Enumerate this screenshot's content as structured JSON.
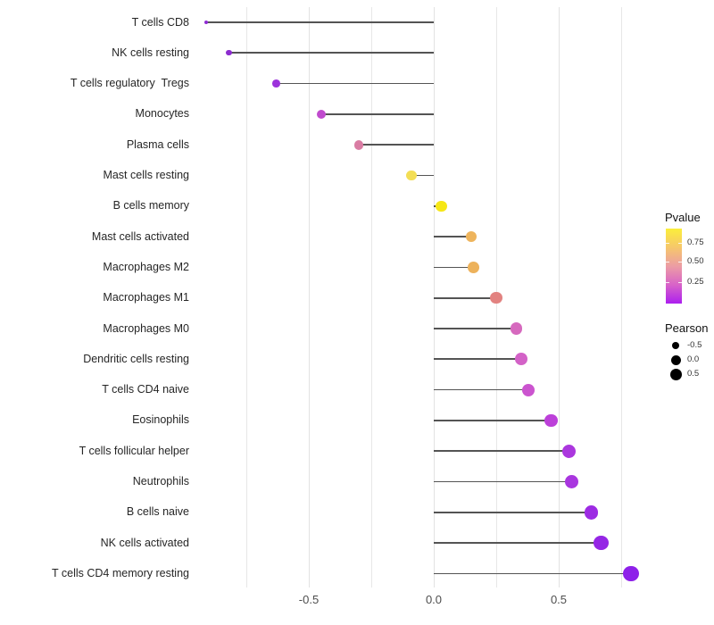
{
  "chart_data": {
    "type": "lollipop",
    "title": "",
    "xlabel": "",
    "ylabel": "",
    "x_axis": {
      "tick_labels": [
        "-0.5",
        "0.0",
        "0.5"
      ],
      "tick_values": [
        -0.5,
        0.0,
        0.5
      ],
      "gridline_values": [
        -0.75,
        -0.5,
        -0.25,
        0.0,
        0.25,
        0.5,
        0.75
      ],
      "range": [
        -0.98,
        0.85
      ],
      "grid": "vertical-only"
    },
    "stem_color": "#545454",
    "points": [
      {
        "label": "T cells CD8",
        "pearson": -0.91,
        "color": "#8F2BD3",
        "radius": 2.0
      },
      {
        "label": "NK cells resting",
        "pearson": -0.82,
        "color": "#8C2CCF",
        "radius": 3.2
      },
      {
        "label": "T cells regulatory  Tregs",
        "pearson": -0.63,
        "color": "#9C33DB",
        "radius": 4.3
      },
      {
        "label": "Monocytes",
        "pearson": -0.45,
        "color": "#C04BCE",
        "radius": 5.0
      },
      {
        "label": "Plasma cells",
        "pearson": -0.3,
        "color": "#D97CA3",
        "radius": 5.4
      },
      {
        "label": "Mast cells resting",
        "pearson": -0.09,
        "color": "#F3DE55",
        "radius": 5.8
      },
      {
        "label": "B cells memory",
        "pearson": 0.03,
        "color": "#F6E716",
        "radius": 6.2
      },
      {
        "label": "Mast cells activated",
        "pearson": 0.15,
        "color": "#EEB45C",
        "radius": 6.4
      },
      {
        "label": "Macrophages M2",
        "pearson": 0.16,
        "color": "#EDB25B",
        "radius": 6.4
      },
      {
        "label": "Macrophages M1",
        "pearson": 0.25,
        "color": "#E28280",
        "radius": 6.7
      },
      {
        "label": "Macrophages M0",
        "pearson": 0.33,
        "color": "#D669BE",
        "radius": 6.9
      },
      {
        "label": "Dendritic cells resting",
        "pearson": 0.35,
        "color": "#D362C7",
        "radius": 6.9
      },
      {
        "label": "T cells CD4 naive",
        "pearson": 0.38,
        "color": "#CB54CF",
        "radius": 7.1
      },
      {
        "label": "Eosinophils",
        "pearson": 0.47,
        "color": "#BC40D9",
        "radius": 7.3
      },
      {
        "label": "T cells follicular helper",
        "pearson": 0.54,
        "color": "#AB37DE",
        "radius": 7.5
      },
      {
        "label": "Neutrophils",
        "pearson": 0.55,
        "color": "#A936DF",
        "radius": 7.5
      },
      {
        "label": "B cells naive",
        "pearson": 0.63,
        "color": "#9D2BE3",
        "radius": 7.8
      },
      {
        "label": "NK cells activated",
        "pearson": 0.67,
        "color": "#9526E5",
        "radius": 8.2
      },
      {
        "label": "T cells CD4 memory resting",
        "pearson": 0.79,
        "color": "#8E20E9",
        "radius": 8.8
      }
    ],
    "legends": {
      "pvalue": {
        "title": "Pvalue",
        "tick_labels": [
          "0.75",
          "0.50",
          "0.25"
        ],
        "gradient_top_to_bottom": [
          "#FBEE3B",
          "#F6C76B",
          "#EC9DA4",
          "#D863C8",
          "#AC1FEF"
        ]
      },
      "pearson": {
        "title": "Pearson",
        "items": [
          {
            "label": "-0.5",
            "radius": 4.0
          },
          {
            "label": "0.0",
            "radius": 5.5
          },
          {
            "label": "0.5",
            "radius": 6.5
          }
        ]
      }
    }
  }
}
